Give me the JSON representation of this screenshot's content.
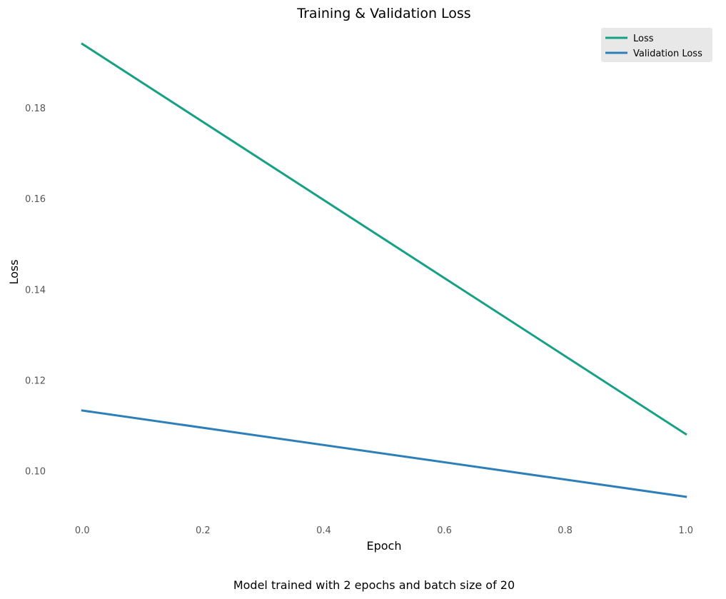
{
  "chart_data": {
    "type": "line",
    "title": "Training & Validation Loss",
    "xlabel": "Epoch",
    "ylabel": "Loss",
    "caption": "Model trained with 2 epochs and batch size of 20",
    "x": [
      0.0,
      1.0
    ],
    "xlim": [
      -0.05,
      1.05
    ],
    "ylim": [
      0.0897,
      0.1978
    ],
    "xticks": [
      "0.0",
      "0.2",
      "0.4",
      "0.6",
      "0.8",
      "1.0"
    ],
    "xtick_values": [
      0.0,
      0.2,
      0.4,
      0.6,
      0.8,
      1.0
    ],
    "yticks": [
      "0.10",
      "0.12",
      "0.14",
      "0.16",
      "0.18"
    ],
    "ytick_values": [
      0.1,
      0.12,
      0.14,
      0.16,
      0.18
    ],
    "grid": false,
    "legend_position": "top-right",
    "series": [
      {
        "name": "Loss",
        "values": [
          0.1941,
          0.1081
        ],
        "color": "#16a085"
      },
      {
        "name": "Validation Loss",
        "values": [
          0.1133,
          0.0943
        ],
        "color": "#2c7fb8"
      }
    ],
    "legend_background": "#e8e8e8"
  }
}
